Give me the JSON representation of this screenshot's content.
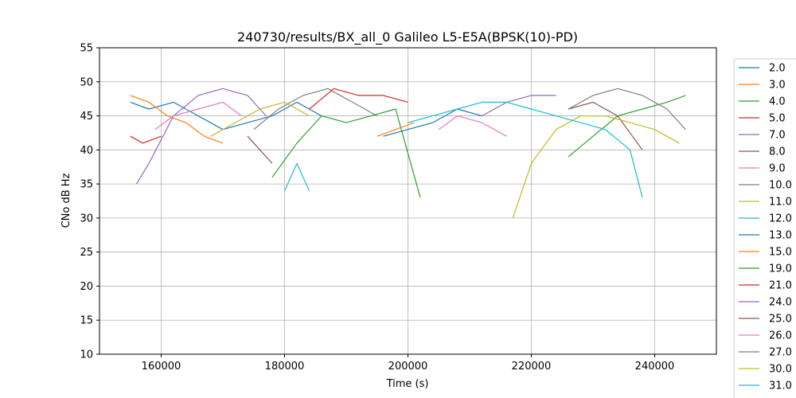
{
  "chart_data": {
    "type": "line",
    "title": "240730/results/BX_all_0 Galileo L5-E5A(BPSK(10)-PD)",
    "xlabel": "Time (s)",
    "ylabel": "CNo dB Hz",
    "xlim": [
      150000,
      250000
    ],
    "ylim": [
      10,
      55
    ],
    "xticks": [
      160000,
      180000,
      200000,
      220000,
      240000
    ],
    "xtick_labels": [
      "160000",
      "180000",
      "200000",
      "220000",
      "240000"
    ],
    "yticks": [
      10,
      15,
      20,
      25,
      30,
      35,
      40,
      45,
      50,
      55
    ],
    "ytick_labels": [
      "10",
      "15",
      "20",
      "25",
      "30",
      "35",
      "40",
      "45",
      "50",
      "55"
    ],
    "grid": true,
    "legend_placement": "right, outside plot (clipped at bottom)",
    "series": [
      {
        "name": "2.0",
        "color": "#1f77b4",
        "x": [
          155000,
          158000,
          162000,
          166000,
          170000,
          174000,
          178000,
          182000,
          186000
        ],
        "y": [
          47,
          46,
          47,
          45,
          43,
          44,
          45,
          47,
          45
        ]
      },
      {
        "name": "3.0",
        "color": "#ff7f0e",
        "x": [
          155000,
          158000,
          161000,
          164000,
          167000,
          170000
        ],
        "y": [
          48,
          47,
          45,
          44,
          42,
          41
        ]
      },
      {
        "name": "4.0",
        "color": "#2ca02c",
        "x": [
          178000,
          182000,
          186000,
          190000,
          194000,
          198000,
          202000
        ],
        "y": [
          36,
          41,
          45,
          44,
          45,
          46,
          33
        ]
      },
      {
        "name": "5.0",
        "color": "#d62728",
        "x": [
          155000,
          157000,
          160000
        ],
        "y": [
          42,
          41,
          42
        ]
      },
      {
        "name": "7.0",
        "color": "#9467bd",
        "x": [
          156000,
          158000,
          162000,
          166000,
          170000,
          174000,
          177000
        ],
        "y": [
          35,
          38,
          45,
          48,
          49,
          48,
          45
        ]
      },
      {
        "name": "8.0",
        "color": "#8c564b",
        "x": [
          174000,
          176000,
          178000
        ],
        "y": [
          42,
          40,
          38
        ]
      },
      {
        "name": "9.0",
        "color": "#e377c2",
        "x": [
          159000,
          162000,
          166000,
          170000,
          173000
        ],
        "y": [
          43,
          45,
          46,
          47,
          45
        ]
      },
      {
        "name": "10.0",
        "color": "#7f7f7f",
        "x": [
          175000,
          179000,
          183000,
          187000,
          191000,
          195000
        ],
        "y": [
          43,
          46,
          48,
          49,
          47,
          45
        ]
      },
      {
        "name": "11.0",
        "color": "#bcbd22",
        "x": [
          168000,
          172000,
          176000,
          180000,
          184000
        ],
        "y": [
          42,
          44,
          46,
          47,
          45
        ]
      },
      {
        "name": "12.0",
        "color": "#17becf",
        "x": [
          180000,
          182000,
          184000
        ],
        "y": [
          34,
          38,
          34
        ]
      },
      {
        "name": "13.0",
        "color": "#1f77b4",
        "x": [
          196000,
          200000,
          204000,
          208000,
          212000
        ],
        "y": [
          42,
          43,
          44,
          46,
          45
        ]
      },
      {
        "name": "15.0",
        "color": "#ff7f0e",
        "x": [
          195000,
          198000,
          201000
        ],
        "y": [
          42,
          43,
          44
        ]
      },
      {
        "name": "19.0",
        "color": "#2ca02c",
        "x": [
          226000,
          230000,
          234000,
          238000,
          242000,
          245000
        ],
        "y": [
          39,
          42,
          45,
          46,
          47,
          48
        ]
      },
      {
        "name": "21.0",
        "color": "#d62728",
        "x": [
          184000,
          188000,
          192000,
          196000,
          200000
        ],
        "y": [
          46,
          49,
          48,
          48,
          47
        ]
      },
      {
        "name": "24.0",
        "color": "#9467bd",
        "x": [
          212000,
          216000,
          220000,
          224000
        ],
        "y": [
          45,
          47,
          48,
          48
        ]
      },
      {
        "name": "25.0",
        "color": "#8c564b",
        "x": [
          226000,
          230000,
          234000,
          238000
        ],
        "y": [
          46,
          47,
          45,
          40
        ]
      },
      {
        "name": "26.0",
        "color": "#e377c2",
        "x": [
          205000,
          208000,
          212000,
          216000
        ],
        "y": [
          43,
          45,
          44,
          42
        ]
      },
      {
        "name": "27.0",
        "color": "#7f7f7f",
        "x": [
          226000,
          230000,
          234000,
          238000,
          242000,
          245000
        ],
        "y": [
          46,
          48,
          49,
          48,
          46,
          43
        ]
      },
      {
        "name": "30.0",
        "color": "#bcbd22",
        "x": [
          217000,
          220000,
          224000,
          228000,
          232000,
          236000,
          240000,
          244000
        ],
        "y": [
          30,
          38,
          43,
          45,
          45,
          44,
          43,
          41
        ]
      },
      {
        "name": "31.0",
        "color": "#17becf",
        "x": [
          200000,
          204000,
          208000,
          212000,
          216000,
          220000,
          224000,
          228000,
          232000,
          236000,
          238000
        ],
        "y": [
          44,
          45,
          46,
          47,
          47,
          46,
          45,
          44,
          43,
          40,
          33
        ]
      }
    ]
  }
}
